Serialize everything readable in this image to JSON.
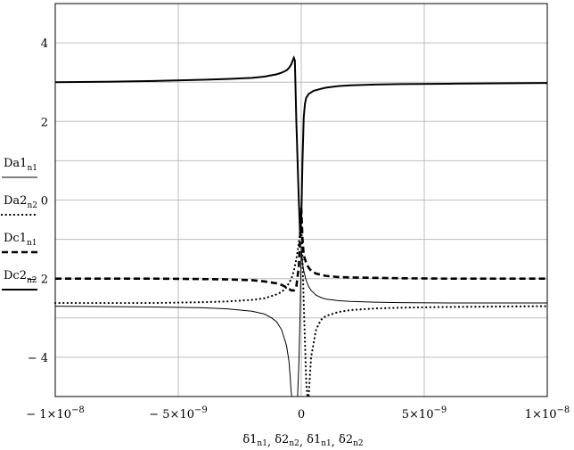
{
  "chart_data": {
    "type": "line",
    "title": "",
    "xlim": [
      -1e-08,
      1e-08
    ],
    "ylim": [
      -5,
      5
    ],
    "x_ticks": [
      -1e-08,
      -5e-09,
      0,
      5e-09,
      1e-08
    ],
    "x_tick_labels": [
      {
        "base": "− 1×10",
        "exp": "−8"
      },
      {
        "base": "− 5×10",
        "exp": "−9"
      },
      {
        "base": "0",
        "exp": ""
      },
      {
        "base": "5×10",
        "exp": "−9"
      },
      {
        "base": "1×10",
        "exp": "−8"
      }
    ],
    "y_ticks": [
      -4,
      -2,
      0,
      2,
      4
    ],
    "y_tick_labels": [
      "− 4",
      "− 2",
      "0",
      "2",
      "4"
    ],
    "grid": true,
    "xlabel": [
      {
        "main": "δ1",
        "sub": "n1"
      },
      {
        "main": "δ2",
        "sub": "n2"
      },
      {
        "main": "δ1",
        "sub": "n1"
      },
      {
        "main": "δ2",
        "sub": "n2"
      }
    ],
    "xlabel_sep": ", ",
    "legend_placement": "left",
    "series": [
      {
        "label_main": "Da1",
        "label_sub": "n1",
        "style": "thin-solid",
        "x": [
          -1e-08,
          -8e-09,
          -6e-09,
          -4e-09,
          -3e-09,
          -2e-09,
          -1.5e-09,
          -1.2e-09,
          -1e-09,
          -8e-10,
          -6e-10,
          -5e-10,
          -4.5e-10,
          -4.2e-10,
          -3.9e-10,
          -1.5e-10,
          -1e-10,
          -5e-11,
          -2e-11,
          0,
          5e-11,
          1e-10,
          2e-10,
          3e-10,
          4e-10,
          6e-10,
          8e-10,
          1e-09,
          1.5e-09,
          2e-09,
          3e-09,
          4e-09,
          6e-09,
          8e-09,
          1e-08
        ],
        "y": [
          -2.7,
          -2.71,
          -2.72,
          -2.74,
          -2.77,
          -2.83,
          -2.9,
          -3.0,
          -3.1,
          -3.3,
          -3.7,
          -4.1,
          -4.5,
          -4.8,
          -5.0,
          -5.0,
          -4.2,
          -3.0,
          -2.0,
          -1.2,
          -1.6,
          -1.8,
          -2.05,
          -2.2,
          -2.3,
          -2.42,
          -2.48,
          -2.52,
          -2.56,
          -2.58,
          -2.6,
          -2.61,
          -2.62,
          -2.62,
          -2.62
        ]
      },
      {
        "label_main": "Da2",
        "label_sub": "n2",
        "style": "dotted",
        "x": [
          -1e-08,
          -8e-09,
          -6e-09,
          -4e-09,
          -3e-09,
          -2e-09,
          -1.5e-09,
          -1e-09,
          -8e-10,
          -6e-10,
          -4e-10,
          -3e-10,
          -2e-10,
          -1e-10,
          -5e-11,
          0,
          5e-11,
          1e-10,
          1.5e-10,
          2e-10,
          2.5e-10,
          3e-10,
          4e-10,
          6e-10,
          8e-10,
          1e-09,
          1.5e-09,
          2e-09,
          3e-09,
          4e-09,
          6e-09,
          8e-09,
          1e-08
        ],
        "y": [
          -2.62,
          -2.62,
          -2.62,
          -2.6,
          -2.58,
          -2.54,
          -2.5,
          -2.4,
          -2.34,
          -2.22,
          -2.0,
          -1.8,
          -1.5,
          -1.1,
          -0.8,
          -0.5,
          -1.5,
          -2.6,
          -3.6,
          -4.6,
          -5.0,
          -5.0,
          -4.0,
          -3.3,
          -3.05,
          -2.95,
          -2.85,
          -2.8,
          -2.76,
          -2.74,
          -2.72,
          -2.71,
          -2.7
        ]
      },
      {
        "label_main": "Dc1",
        "label_sub": "n1",
        "style": "dashed",
        "x": [
          -1e-08,
          -6e-09,
          -4e-09,
          -3e-09,
          -2e-09,
          -1.5e-09,
          -1e-09,
          -8e-10,
          -6e-10,
          -4e-10,
          -3e-10,
          -2e-10,
          -1e-10,
          -5e-11,
          0,
          5e-11,
          1e-10,
          2e-10,
          3e-10,
          4e-10,
          6e-10,
          8e-10,
          1e-09,
          1.5e-09,
          2e-09,
          3e-09,
          4e-09,
          6e-09,
          8e-09,
          1e-08
        ],
        "y": [
          -2.0,
          -2.0,
          -2.01,
          -2.02,
          -2.04,
          -2.07,
          -2.12,
          -2.16,
          -2.22,
          -2.3,
          -2.3,
          -2.2,
          -1.7,
          -1.0,
          -0.2,
          -1.0,
          -1.4,
          -1.6,
          -1.72,
          -1.8,
          -1.87,
          -1.9,
          -1.93,
          -1.96,
          -1.97,
          -1.98,
          -1.99,
          -2.0,
          -2.0,
          -2.0
        ]
      },
      {
        "label_main": "Dc2",
        "label_sub": "n2",
        "style": "thick-solid",
        "x": [
          -1e-08,
          -8e-09,
          -6e-09,
          -4e-09,
          -3e-09,
          -2e-09,
          -1.5e-09,
          -1e-09,
          -8e-10,
          -6e-10,
          -5e-10,
          -4e-10,
          -3.5e-10,
          -3e-10,
          -2.6e-10,
          -2e-10,
          -1e-10,
          -5e-11,
          0,
          5e-11,
          1e-10,
          1.5e-10,
          2e-10,
          3e-10,
          5e-10,
          8e-10,
          1e-09,
          1.5e-09,
          2e-09,
          3e-09,
          4e-09,
          6e-09,
          8e-09,
          1e-08
        ],
        "y": [
          3.0,
          3.01,
          3.03,
          3.06,
          3.08,
          3.11,
          3.14,
          3.2,
          3.24,
          3.3,
          3.36,
          3.46,
          3.55,
          3.62,
          3.55,
          2.0,
          0.0,
          -0.8,
          -0.5,
          1.0,
          2.1,
          2.45,
          2.6,
          2.7,
          2.78,
          2.83,
          2.86,
          2.9,
          2.92,
          2.94,
          2.95,
          2.96,
          2.97,
          2.98
        ]
      }
    ]
  }
}
